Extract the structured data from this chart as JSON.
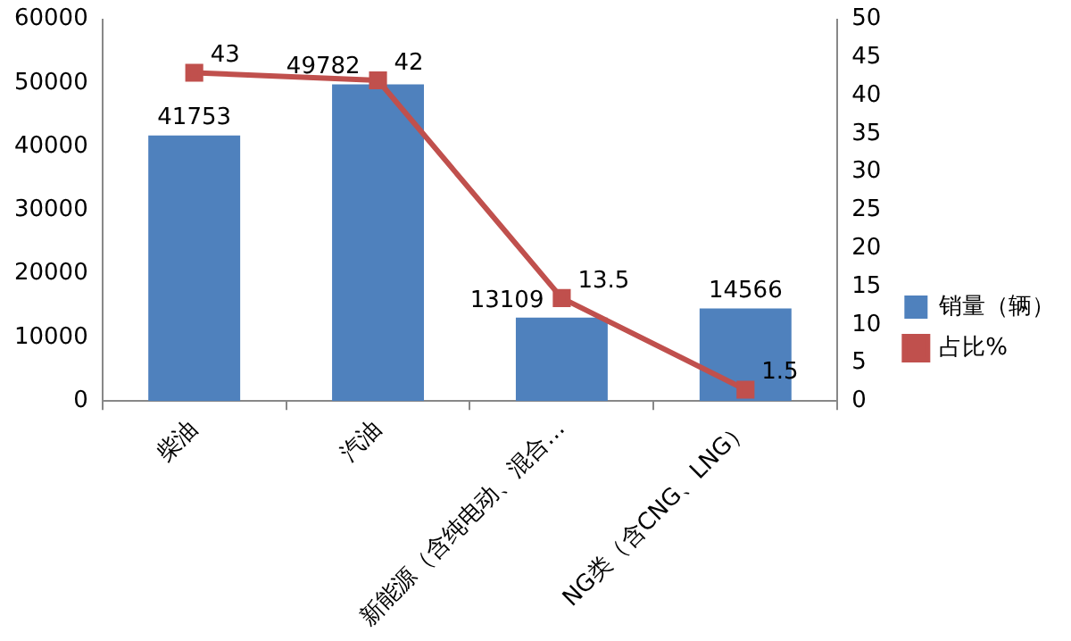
{
  "chart_data": {
    "type": "bar",
    "categories": [
      "柴油",
      "汽油",
      "新能源（含纯电动、混合…",
      "NG类（含CNG、LNG）"
    ],
    "series": [
      {
        "name": "销量（辆）",
        "color": "#4f81bd",
        "values": [
          41753,
          49782,
          13109,
          14566
        ]
      },
      {
        "name": "占比%",
        "type": "line",
        "axis": "y2",
        "color": "#c0504d",
        "marker": "square",
        "values": [
          43,
          42,
          13.5,
          1.5
        ]
      }
    ],
    "ylim": [
      0,
      60000
    ],
    "yticks": [
      0,
      10000,
      20000,
      30000,
      40000,
      50000,
      60000
    ],
    "y2lim": [
      0,
      50
    ],
    "y2ticks": [
      0,
      5,
      10,
      15,
      20,
      25,
      30,
      35,
      40,
      45,
      50
    ],
    "data_labels": true,
    "grid": false,
    "legend": "right"
  }
}
